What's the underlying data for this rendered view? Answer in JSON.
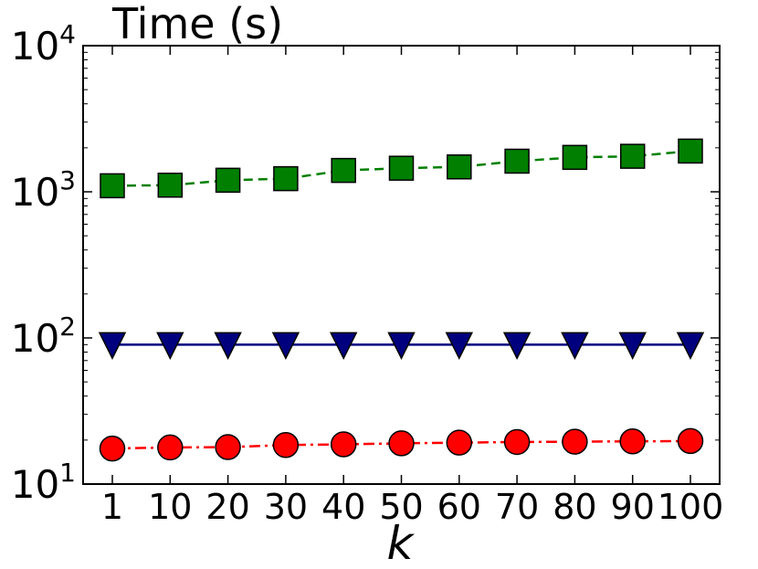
{
  "chart_data": {
    "type": "line",
    "title": "Time (s)",
    "xlabel": "k",
    "ylabel": "",
    "x_scale": "categorical",
    "y_scale": "log",
    "categories": [
      "1",
      "10",
      "20",
      "30",
      "40",
      "50",
      "60",
      "70",
      "80",
      "90",
      "100"
    ],
    "ylim": [
      10,
      10000
    ],
    "y_ticks": [
      {
        "base": "10",
        "exp": "1"
      },
      {
        "base": "10",
        "exp": "2"
      },
      {
        "base": "10",
        "exp": "3"
      },
      {
        "base": "10",
        "exp": "4"
      }
    ],
    "grid": false,
    "series": [
      {
        "values": [
          1100,
          1110,
          1200,
          1230,
          1400,
          1450,
          1480,
          1620,
          1720,
          1750,
          1900
        ],
        "color": "#007f00",
        "line_style": "dashed",
        "marker": "square"
      },
      {
        "values": [
          90,
          90,
          90,
          90,
          90,
          90,
          90,
          90,
          90,
          90,
          90
        ],
        "color": "#00007f",
        "line_style": "solid",
        "marker": "triangle-down"
      },
      {
        "values": [
          17.5,
          17.8,
          17.9,
          18.5,
          18.7,
          19.0,
          19.2,
          19.4,
          19.5,
          19.6,
          19.7
        ],
        "color": "#ff0000",
        "line_style": "dashdot",
        "marker": "circle"
      }
    ]
  }
}
